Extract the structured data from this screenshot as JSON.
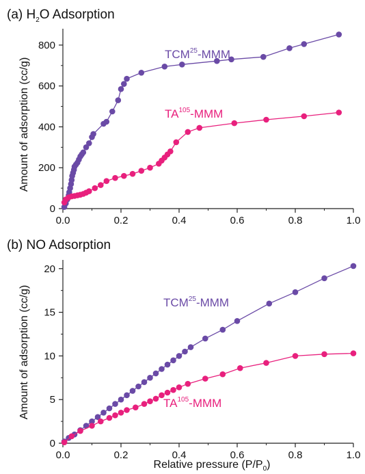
{
  "colors": {
    "tcm": "#6a4aa6",
    "ta": "#e8207d",
    "axis": "#222222",
    "text": "#111111"
  },
  "chart_data": [
    {
      "type": "line",
      "title_prefix": "(a) H",
      "title_sub": "2",
      "title_suffix": "O Adsorption",
      "ylabel": "Amount of adsorption (cc/g)",
      "xlabel": "",
      "xlim": [
        0,
        1.0
      ],
      "ylim": [
        0,
        880
      ],
      "xticks": [
        "0.0",
        "0.2",
        "0.4",
        "0.6",
        "0.8",
        "1.0"
      ],
      "yticks": [
        "0",
        "200",
        "400",
        "600",
        "800"
      ],
      "ytick_values": [
        0,
        200,
        400,
        600,
        800
      ],
      "series": [
        {
          "name_base": "TCM",
          "name_sup": "25",
          "name_tail": "-MMM",
          "color": "#6a4aa6",
          "x": [
            0.005,
            0.01,
            0.015,
            0.02,
            0.022,
            0.025,
            0.028,
            0.03,
            0.032,
            0.035,
            0.038,
            0.04,
            0.045,
            0.05,
            0.055,
            0.06,
            0.065,
            0.07,
            0.08,
            0.09,
            0.1,
            0.105,
            0.14,
            0.15,
            0.17,
            0.19,
            0.2,
            0.21,
            0.22,
            0.27,
            0.35,
            0.41,
            0.53,
            0.58,
            0.69,
            0.78,
            0.83,
            0.95
          ],
          "y": [
            8,
            25,
            45,
            65,
            80,
            100,
            120,
            140,
            160,
            175,
            190,
            205,
            215,
            225,
            240,
            255,
            265,
            275,
            300,
            320,
            350,
            365,
            415,
            425,
            475,
            530,
            585,
            610,
            635,
            665,
            695,
            705,
            722,
            730,
            742,
            785,
            805,
            852
          ]
        },
        {
          "name_base": "TA",
          "name_sup": "105",
          "name_tail": "-MMM",
          "color": "#e8207d",
          "x": [
            0.005,
            0.01,
            0.02,
            0.03,
            0.04,
            0.05,
            0.06,
            0.07,
            0.08,
            0.09,
            0.11,
            0.13,
            0.15,
            0.18,
            0.21,
            0.24,
            0.27,
            0.3,
            0.33,
            0.34,
            0.35,
            0.36,
            0.37,
            0.39,
            0.43,
            0.47,
            0.59,
            0.7,
            0.83,
            0.95
          ],
          "y": [
            30,
            45,
            55,
            60,
            62,
            65,
            68,
            72,
            78,
            85,
            100,
            115,
            135,
            150,
            160,
            170,
            185,
            200,
            220,
            235,
            250,
            265,
            280,
            325,
            375,
            395,
            418,
            435,
            452,
            470
          ]
        }
      ]
    },
    {
      "type": "line",
      "title_prefix": "(b) NO Adsorption",
      "title_sub": "",
      "title_suffix": "",
      "ylabel": "Amount of adsorption (cc/g)",
      "xlabel_prefix": "Relative pressure (P/P",
      "xlabel_sub": "0",
      "xlabel_suffix": ")",
      "xlim": [
        0,
        1.0
      ],
      "ylim": [
        0,
        21
      ],
      "xticks": [
        "0.0",
        "0.2",
        "0.4",
        "0.6",
        "0.8",
        "1.0"
      ],
      "yticks": [
        "0",
        "5",
        "10",
        "15",
        "20"
      ],
      "ytick_values": [
        0,
        5,
        10,
        15,
        20
      ],
      "series": [
        {
          "name_base": "TCM",
          "name_sup": "25",
          "name_tail": "-MMM",
          "color": "#6a4aa6",
          "x": [
            0.005,
            0.02,
            0.06,
            0.1,
            0.15,
            0.2,
            0.25,
            0.3,
            0.35,
            0.4,
            0.5,
            0.6,
            0.71,
            0.81,
            0.91,
            1.0
          ],
          "y": [
            0.3,
            1.0,
            2.0,
            2.8,
            3.8,
            4.8,
            5.8,
            6.8,
            7.9,
            8.9,
            10.9,
            12.9,
            14.9,
            16.8,
            18.6,
            20.2
          ],
          "x_dense": [
            0.005,
            0.02,
            0.04,
            0.06,
            0.08,
            0.1,
            0.12,
            0.14,
            0.16,
            0.18,
            0.2,
            0.22,
            0.24,
            0.26,
            0.28,
            0.3,
            0.32,
            0.34,
            0.36,
            0.38,
            0.4,
            0.42,
            0.44,
            0.49,
            0.55,
            0.6,
            0.71,
            0.8,
            0.9,
            1.0
          ],
          "y_dense": [
            0.2,
            0.6,
            1.0,
            1.5,
            2.0,
            2.5,
            3.0,
            3.5,
            4.0,
            4.5,
            5.0,
            5.5,
            6.0,
            6.5,
            7.0,
            7.5,
            8.0,
            8.5,
            9.0,
            9.5,
            10.0,
            10.5,
            11.0,
            12.0,
            13.0,
            14.0,
            16.0,
            17.3,
            18.9,
            20.3
          ]
        },
        {
          "name_base": "TA",
          "name_sup": "105",
          "name_tail": "-MMM",
          "color": "#e8207d",
          "x": [
            0.005,
            0.03,
            0.06,
            0.1,
            0.13,
            0.16,
            0.18,
            0.2,
            0.22,
            0.25,
            0.28,
            0.3,
            0.32,
            0.34,
            0.36,
            0.38,
            0.4,
            0.43,
            0.49,
            0.55,
            0.61,
            0.7,
            0.8,
            0.9,
            1.0
          ],
          "y": [
            0.1,
            0.8,
            1.4,
            2.0,
            2.5,
            2.9,
            3.2,
            3.5,
            3.8,
            4.1,
            4.5,
            4.8,
            5.1,
            5.5,
            5.8,
            6.1,
            6.4,
            6.8,
            7.4,
            7.9,
            8.6,
            9.2,
            10.0,
            10.2,
            10.3
          ]
        }
      ]
    }
  ]
}
